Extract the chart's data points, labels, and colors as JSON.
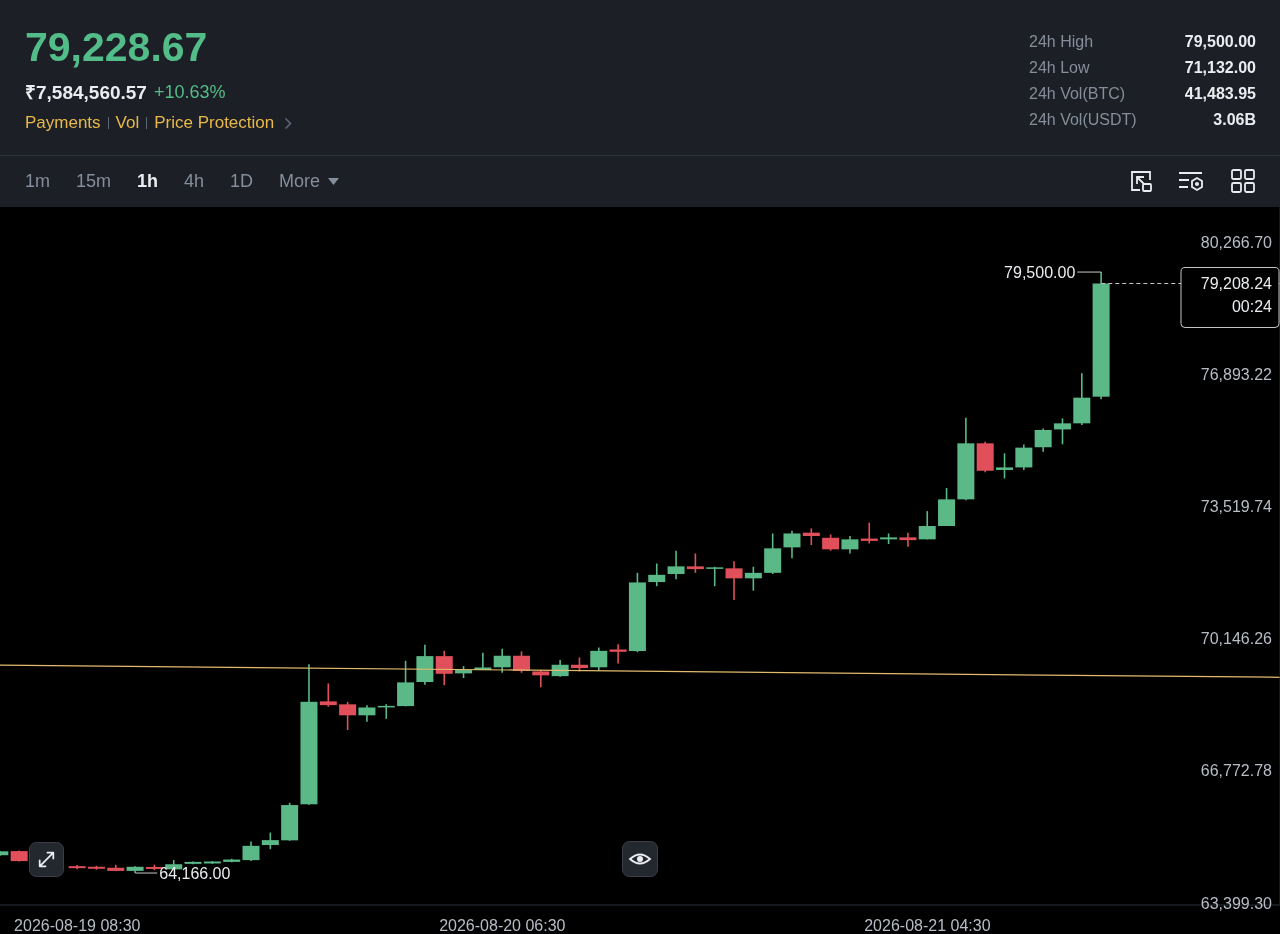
{
  "chart_data": {
    "type": "candlestick",
    "title": "79,228.67",
    "annotations": [
      "₹7,584,560.57",
      "+10.63%",
      "Payments",
      "Vol",
      "Price Protection",
      "24h High",
      "79,500.00",
      "24h Low",
      "71,132.00",
      "24h Vol(BTC)",
      "41,483.95",
      "24h Vol(USDT)",
      "3.06B",
      "1m",
      "15m",
      "1h",
      "4h",
      "1D",
      "More",
      {
        "text": "79,500.00",
        "x": "2026-08-21T13:30",
        "y": 79500
      },
      {
        "text": "64,166.00",
        "x": "2026-08-19T11:30",
        "y": 64166
      }
    ],
    "x": [
      "2026-08-19T04:30",
      "2026-08-19T05:30",
      "2026-08-19T08:30",
      "2026-08-19T09:30",
      "2026-08-19T10:30",
      "2026-08-19T11:30",
      "2026-08-19T12:30",
      "2026-08-19T13:30",
      "2026-08-19T14:30",
      "2026-08-19T15:30",
      "2026-08-19T16:30",
      "2026-08-19T17:30",
      "2026-08-19T18:30",
      "2026-08-19T19:30",
      "2026-08-19T20:30",
      "2026-08-19T21:30",
      "2026-08-19T22:30",
      "2026-08-19T23:30",
      "2026-08-20T00:30",
      "2026-08-20T01:30",
      "2026-08-20T02:30",
      "2026-08-20T03:30",
      "2026-08-20T04:30",
      "2026-08-20T05:30",
      "2026-08-20T06:30",
      "2026-08-20T07:30",
      "2026-08-20T08:30",
      "2026-08-20T09:30",
      "2026-08-20T10:30",
      "2026-08-20T11:30",
      "2026-08-20T12:30",
      "2026-08-20T13:30",
      "2026-08-20T14:30",
      "2026-08-20T15:30",
      "2026-08-20T16:30",
      "2026-08-20T17:30",
      "2026-08-20T18:30",
      "2026-08-20T19:30",
      "2026-08-20T20:30",
      "2026-08-20T21:30",
      "2026-08-20T22:30",
      "2026-08-20T23:30",
      "2026-08-21T00:30",
      "2026-08-21T01:30",
      "2026-08-21T02:30",
      "2026-08-21T03:30",
      "2026-08-21T04:30",
      "2026-08-21T05:30",
      "2026-08-21T06:30",
      "2026-08-21T07:30",
      "2026-08-21T08:30",
      "2026-08-21T09:30",
      "2026-08-21T10:30",
      "2026-08-21T11:30",
      "2026-08-21T12:30",
      "2026-08-21T13:30"
    ],
    "ohlc": [
      [
        64620,
        64730,
        64600,
        64720
      ],
      [
        64725,
        64740,
        64460,
        64470
      ],
      [
        64340,
        64370,
        64260,
        64290
      ],
      [
        64325,
        64350,
        64250,
        64275
      ],
      [
        64300,
        64375,
        64220,
        64220
      ],
      [
        64220,
        64340,
        64166,
        64325
      ],
      [
        64320,
        64380,
        64240,
        64270
      ],
      [
        64260,
        64495,
        64240,
        64390
      ],
      [
        64400,
        64460,
        64390,
        64450
      ],
      [
        64410,
        64470,
        64400,
        64460
      ],
      [
        64450,
        64530,
        64440,
        64510
      ],
      [
        64495,
        64970,
        64470,
        64860
      ],
      [
        64880,
        65200,
        64775,
        65005
      ],
      [
        65000,
        65960,
        64990,
        65900
      ],
      [
        65920,
        69490,
        65910,
        68535
      ],
      [
        68545,
        69005,
        68410,
        68450
      ],
      [
        68470,
        68535,
        67815,
        68190
      ],
      [
        68190,
        68445,
        68025,
        68390
      ],
      [
        68400,
        68475,
        68100,
        68430
      ],
      [
        68425,
        69580,
        68420,
        69030
      ],
      [
        69040,
        69990,
        68970,
        69700
      ],
      [
        69700,
        69835,
        68960,
        69250
      ],
      [
        69260,
        69445,
        69140,
        69345
      ],
      [
        69345,
        69785,
        69345,
        69410
      ],
      [
        69415,
        69890,
        69275,
        69710
      ],
      [
        69710,
        69820,
        69275,
        69320
      ],
      [
        69310,
        69345,
        68905,
        69210
      ],
      [
        69190,
        69600,
        69175,
        69480
      ],
      [
        69480,
        69665,
        69310,
        69395
      ],
      [
        69415,
        69920,
        69325,
        69835
      ],
      [
        69870,
        70005,
        69515,
        69810
      ],
      [
        69830,
        71825,
        69800,
        71580
      ],
      [
        71590,
        72065,
        71485,
        71775
      ],
      [
        71795,
        72390,
        71660,
        71990
      ],
      [
        71990,
        72320,
        71825,
        71920
      ],
      [
        71935,
        71980,
        71485,
        71965
      ],
      [
        71940,
        72120,
        71132,
        71685
      ],
      [
        71685,
        71980,
        71370,
        71825
      ],
      [
        71825,
        72830,
        71795,
        72450
      ],
      [
        72475,
        72900,
        72195,
        72830
      ],
      [
        72850,
        72960,
        72535,
        72765
      ],
      [
        72720,
        72805,
        72390,
        72425
      ],
      [
        72425,
        72765,
        72320,
        72680
      ],
      [
        72700,
        73105,
        72575,
        72640
      ],
      [
        72680,
        72830,
        72560,
        72730
      ],
      [
        72730,
        72850,
        72490,
        72660
      ],
      [
        72680,
        73400,
        72680,
        73020
      ],
      [
        73020,
        73990,
        73020,
        73700
      ],
      [
        73700,
        75785,
        73680,
        75130
      ],
      [
        75130,
        75170,
        74390,
        74430
      ],
      [
        74450,
        74875,
        74235,
        74515
      ],
      [
        74515,
        75100,
        74450,
        75020
      ],
      [
        75030,
        75510,
        74915,
        75470
      ],
      [
        75485,
        75765,
        75105,
        75640
      ],
      [
        75640,
        76915,
        75595,
        76295
      ],
      [
        76320,
        79500,
        76255,
        79208.24
      ]
    ],
    "colors": [
      "#5ab987",
      "#e1505a",
      "#e1505a",
      "#e1505a",
      "#e1505a",
      "#5ab987",
      "#e1505a",
      "#5ab987",
      "#5ab987",
      "#5ab987",
      "#5ab987",
      "#5ab987",
      "#5ab987",
      "#5ab987",
      "#5ab987",
      "#e1505a",
      "#e1505a",
      "#5ab987",
      "#5ab987",
      "#5ab987",
      "#5ab987",
      "#e1505a",
      "#5ab987",
      "#5ab987",
      "#5ab987",
      "#e1505a",
      "#e1505a",
      "#5ab987",
      "#e1505a",
      "#5ab987",
      "#e1505a",
      "#5ab987",
      "#5ab987",
      "#5ab987",
      "#e1505a",
      "#5ab987",
      "#e1505a",
      "#5ab987",
      "#5ab987",
      "#5ab987",
      "#e1505a",
      "#e1505a",
      "#5ab987",
      "#e1505a",
      "#5ab987",
      "#e1505a",
      "#5ab987",
      "#5ab987",
      "#5ab987",
      "#e1505a",
      "#5ab987",
      "#5ab987",
      "#5ab987",
      "#5ab987",
      "#5ab987",
      "#5ab987"
    ],
    "series": [
      {
        "type": "line",
        "x": [
          "2026-08-19T04:30",
          "2026-08-21T22:45"
        ],
        "values": [
          69470,
          69160
        ],
        "color": "#e3bb6c"
      }
    ],
    "xlim": [
      "2026-08-19T04:30",
      "2026-08-21T22:45"
    ],
    "xticks": [
      {
        "value": "2026-08-19T08:30",
        "label": "2026-08-19 08:30"
      },
      {
        "value": "2026-08-20T06:30",
        "label": "2026-08-20 06:30"
      },
      {
        "value": "2026-08-21T04:30",
        "label": "2026-08-21 04:30"
      }
    ],
    "ylim": [
      63350,
      81160
    ],
    "yticks": [
      {
        "value": 80266.7,
        "label": "80,266.70"
      },
      {
        "value": 76893.22,
        "label": "76,893.22"
      },
      {
        "value": 73519.74,
        "label": "73,519.74"
      },
      {
        "value": 70146.26,
        "label": "70,146.26"
      },
      {
        "value": 66772.78,
        "label": "66,772.78"
      },
      {
        "value": 63399.3,
        "label": "63,399.30"
      }
    ],
    "ref_lines": [
      {
        "axis": "y",
        "value": 79208.24,
        "label": "79,208.24\n00:24",
        "line_style": "dashed",
        "color": "#c8c8c8"
      }
    ]
  }
}
